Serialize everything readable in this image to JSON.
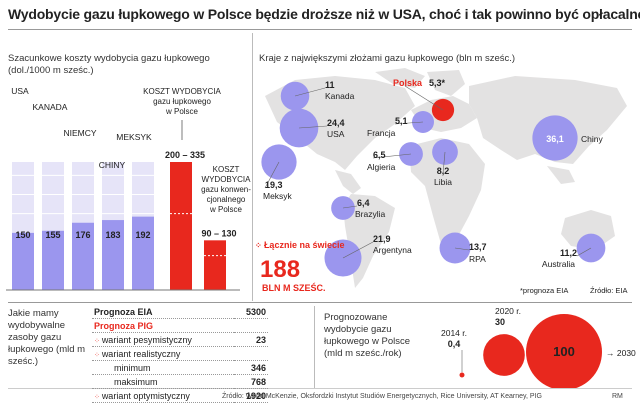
{
  "title": "Wydobycie gazu łupkowego w Polsce będzie droższe niż w USA, choć i tak powinno być opłacalne",
  "colors": {
    "red": "#e8281e",
    "lavender": "#9b96ee",
    "lightlav": "#e6e4f8",
    "map": "#e3e2e2",
    "grid": "#b9b8e8"
  },
  "left_panel": {
    "subtitle": "Szacunkowe koszty wydobycia gazu łupkowego (dol./1000 m sześc.)",
    "estimated_label": "KOSZT WYDOBYCIA gazu łupkowego w Polsce",
    "conventional_label": "KOSZT WYDOBYCIA gazu konwen- cjonalnego w Polsce"
  },
  "chart_data": [
    {
      "type": "bar",
      "title": "Szacunkowe koszty wydobycia gazu łupkowego (dol./1000 m sześc.)",
      "categories": [
        "USA",
        "KANADA",
        "NIEMCY",
        "CHINY",
        "MEKSYK",
        "Polska (łupkowy)",
        "Polska (konwencjonalny)"
      ],
      "values": [
        150,
        155,
        176,
        183,
        192,
        335,
        130
      ],
      "ranges": {
        "Polska (łupkowy)": [
          200,
          335
        ],
        "Polska (konwencjonalny)": [
          90,
          130
        ]
      },
      "data_labels": [
        "150",
        "155",
        "176",
        "183",
        "192",
        "200 – 335",
        "90 – 130"
      ]
    },
    {
      "type": "scatter",
      "title": "Kraje z największymi złożami gazu łupkowego (bln m sześc.)",
      "points": [
        {
          "name": "Kanada",
          "value": 11,
          "label": "11"
        },
        {
          "name": "USA",
          "value": 24.4,
          "label": "24,4"
        },
        {
          "name": "Polska",
          "value": 5.3,
          "label": "5,3*"
        },
        {
          "name": "Francja",
          "value": 5.1,
          "label": "5,1"
        },
        {
          "name": "Chiny",
          "value": 36.1,
          "label": "36,1"
        },
        {
          "name": "Algieria",
          "value": 6.5,
          "label": "6,5"
        },
        {
          "name": "Libia",
          "value": 8.2,
          "label": "8,2"
        },
        {
          "name": "Meksyk",
          "value": 19.3,
          "label": "19,3"
        },
        {
          "name": "Brazylia",
          "value": 6.4,
          "label": "6,4"
        },
        {
          "name": "Argentyna",
          "value": 21.9,
          "label": "21,9"
        },
        {
          "name": "RPA",
          "value": 13.7,
          "label": "13,7"
        },
        {
          "name": "Australia",
          "value": 11.2,
          "label": "11,2"
        }
      ]
    },
    {
      "type": "bar",
      "title": "Prognozowane wydobycie gazu łupkowego w Polsce (mld m sześc./rok)",
      "categories": [
        "2014 r.",
        "2020 r.",
        "2030 r."
      ],
      "values": [
        0.4,
        30,
        100
      ],
      "data_labels": [
        "0,4",
        "30",
        "100"
      ]
    }
  ],
  "map": {
    "subtitle": "Kraje z największymi złożami gazu łupkowego (bln m sześc.)",
    "total_label": "Łącznie na świecie",
    "total_value": "188",
    "total_unit": "BLN M SZEŚC.",
    "footnote": "*prognoza EIA",
    "source": "Źródło: EIA"
  },
  "reserves_table": {
    "subtitle": "Jakie mamy wydobywalne zasoby gazu łupkowego (mld m sześc.)",
    "rows": [
      {
        "label": "Prognoza EIA",
        "value": "5300"
      },
      {
        "label": "Prognoza PIG",
        "value": ""
      },
      {
        "label": "wariant pesymistyczny",
        "value": "23"
      },
      {
        "label": "wariant realistyczny",
        "value": ""
      },
      {
        "label": "minimum",
        "value": "346"
      },
      {
        "label": "maksimum",
        "value": "768"
      },
      {
        "label": "wariant optymistyczny",
        "value": "1920"
      }
    ]
  },
  "forecast": {
    "subtitle": "Prognozowane wydobycie gazu łupkowego w Polsce (mld m sześc./rok)",
    "y2014": "2014 r.",
    "v2014": "0,4",
    "y2020": "2020 r.",
    "v2020": "30",
    "y2030": "2030 r.",
    "v2030": "100",
    "arrow": "→"
  },
  "footer": {
    "source": "Źródło: Wood McKenzie, Oksfordzki Instytut Studiów Energetycznych, Rice University, AT Kearney, PIG",
    "credit": "RM"
  }
}
